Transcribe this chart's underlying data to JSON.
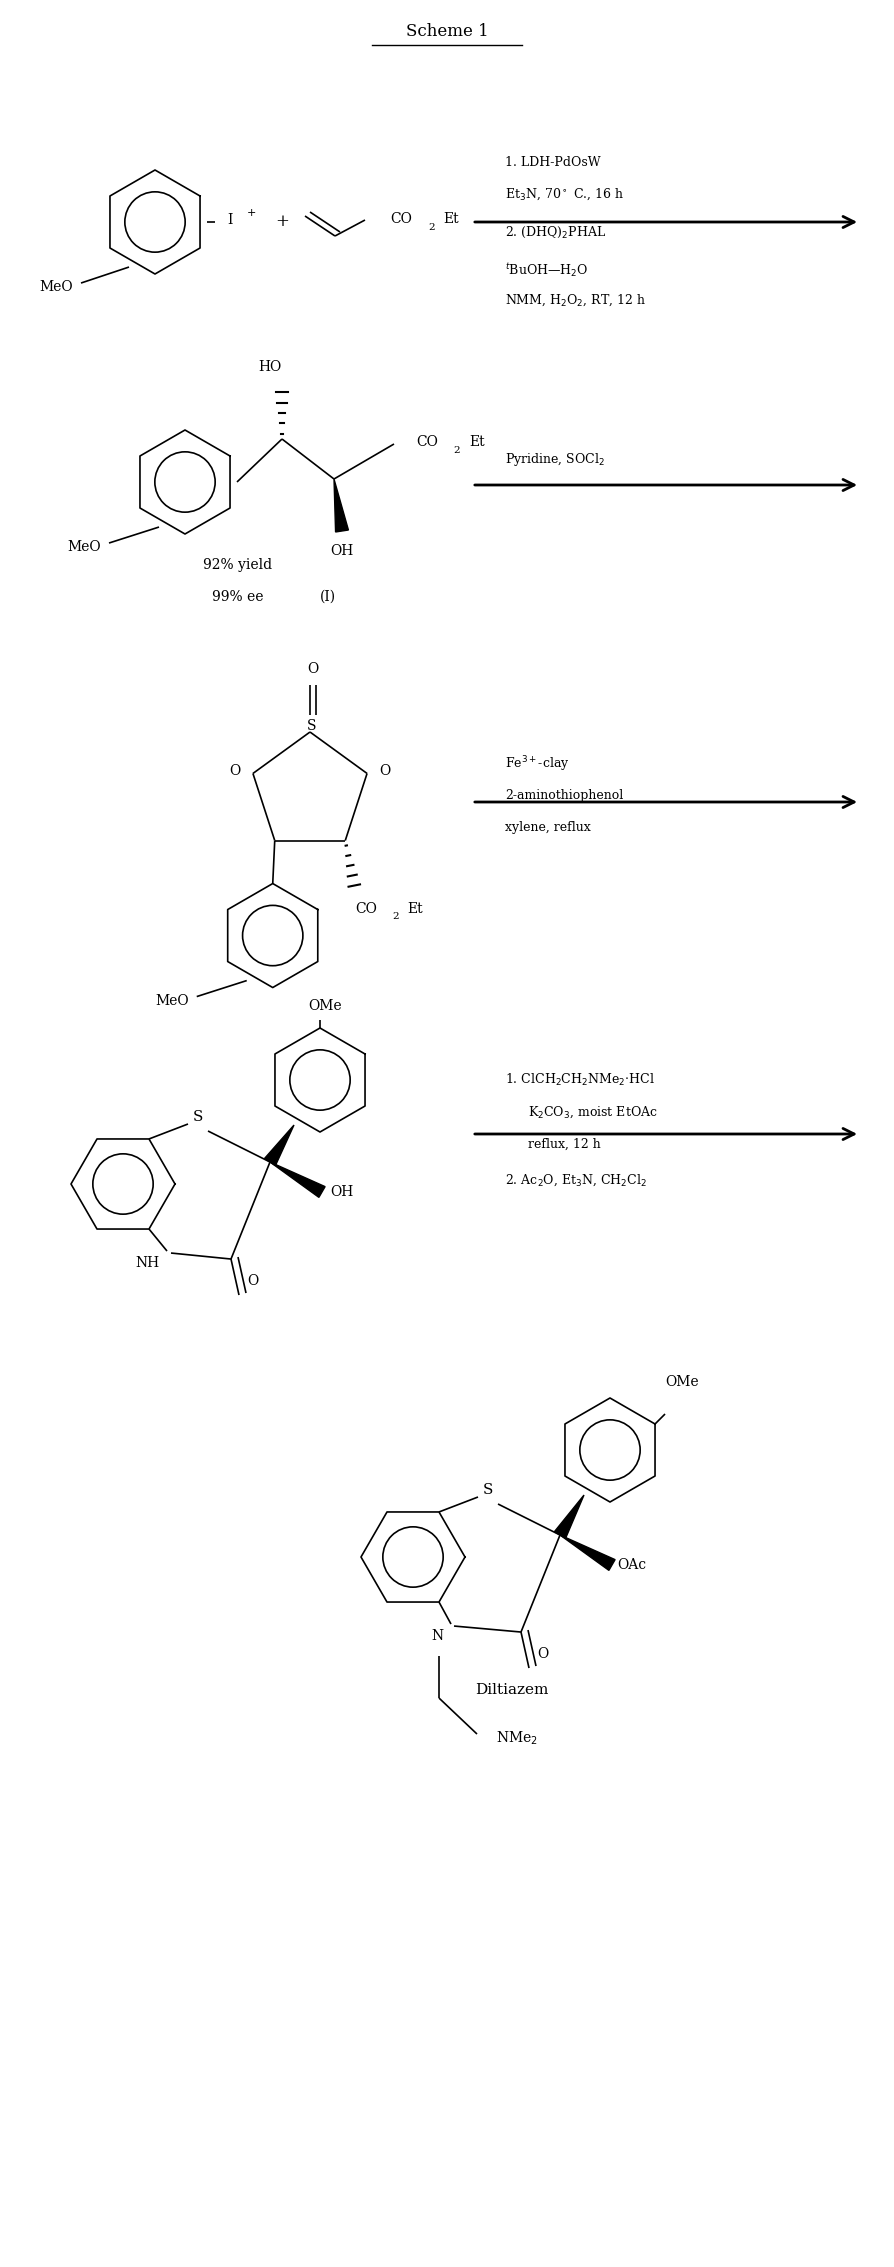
{
  "title": "Scheme 1",
  "background_color": "#ffffff",
  "fig_width": 8.95,
  "fig_height": 22.67,
  "step1_line1": "1. LDH-PdOsW",
  "step1_line2": "Et$_3$N, 70$^\\circ$ C., 16 h",
  "step1_line3": "2. (DHQ)$_2$PHAL",
  "step1_line4": "$^t$BuOH—H$_2$O",
  "step1_line5": "NMM, H$_2$O$_2$, RT, 12 h",
  "step2_label": "Pyridine, SOCl$_2$",
  "step3_line1": "Fe$^{3+}$-clay",
  "step3_line2": "2-aminothiophenol",
  "step3_line3": "xylene, reflux",
  "step4_line1": "1. ClCH$_2$CH$_2$NMe$_2$$\\cdot$HCl",
  "step4_line2": "K$_2$CO$_3$, moist EtOAc",
  "step4_line3": "reflux, 12 h",
  "step4_line4": "2. Ac$_2$O, Et$_3$N, CH$_2$Cl$_2$",
  "yield_label": "92% yield",
  "ee_label": "99% ee",
  "roman_I": "(I)",
  "final_name": "Diltiazem"
}
